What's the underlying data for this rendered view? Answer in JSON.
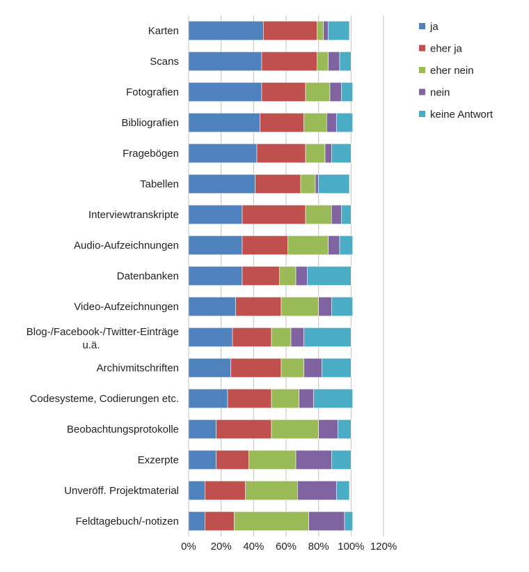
{
  "chart_data": {
    "type": "bar",
    "orientation": "horizontal",
    "stacked": true,
    "categories": [
      "Karten",
      "Scans",
      "Fotografien",
      "Bibliografien",
      "Fragebögen",
      "Tabellen",
      "Interviewtranskripte",
      "Audio-Aufzeichnungen",
      "Datenbanken",
      "Video-Aufzeichnungen",
      "Blog-/Facebook-/Twitter-Einträge u.ä.",
      "Archivmitschriften",
      "Codesysteme, Codierungen etc.",
      "Beobachtungsprotokolle",
      "Exzerpte",
      "Unveröff. Projektmaterial",
      "Feldtagebuch/-notizen"
    ],
    "series": [
      {
        "name": "ja",
        "color": "#4F81BD",
        "values": [
          46,
          45,
          45,
          44,
          42,
          41,
          33,
          33,
          33,
          29,
          27,
          26,
          24,
          17,
          17,
          10,
          10
        ]
      },
      {
        "name": "eher ja",
        "color": "#C0504D",
        "values": [
          33,
          34,
          27,
          27,
          30,
          28,
          39,
          28,
          23,
          28,
          24,
          31,
          27,
          34,
          20,
          25,
          18
        ]
      },
      {
        "name": "eher nein",
        "color": "#9BBB59",
        "values": [
          4,
          7,
          15,
          14,
          12,
          9,
          16,
          25,
          10,
          23,
          12,
          14,
          17,
          29,
          29,
          32,
          46
        ]
      },
      {
        "name": "nein",
        "color": "#8064A2",
        "values": [
          3,
          7,
          7,
          6,
          4,
          2,
          6,
          7,
          7,
          8,
          8,
          11,
          9,
          12,
          22,
          24,
          22
        ]
      },
      {
        "name": "keine Antwort",
        "color": "#4BACC6",
        "values": [
          13,
          7,
          7,
          10,
          12,
          19,
          6,
          8,
          27,
          13,
          29,
          18,
          24,
          8,
          12,
          8,
          5
        ]
      }
    ],
    "x_ticks": [
      "0%",
      "20%",
      "40%",
      "60%",
      "80%",
      "100%",
      "120%"
    ],
    "xlim": [
      0,
      120
    ],
    "grid": true,
    "legend_position": "right"
  }
}
